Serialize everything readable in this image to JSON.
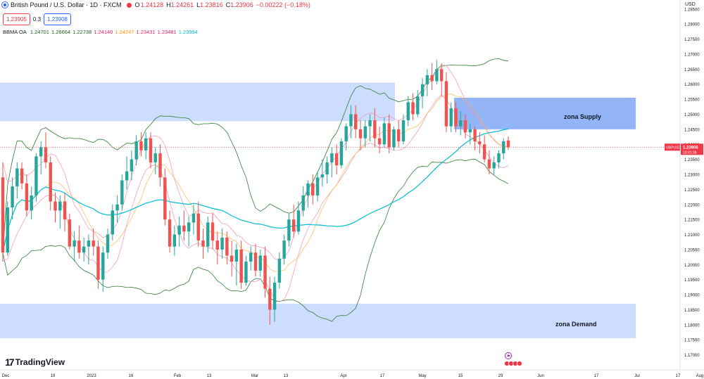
{
  "header": {
    "symbol": "British Pound / U.S. Dollar · 1D · FXCM",
    "o_label": "O",
    "o_value": "1.24128",
    "h_label": "H",
    "h_value": "1.24261",
    "l_label": "L",
    "l_value": "1.23816",
    "c_label": "C",
    "c_value": "1.23906",
    "change": "−0.00222 (−0.18%)"
  },
  "trade": {
    "sell": "1.23905",
    "spread": "0.3",
    "buy": "1.23908"
  },
  "indicator": {
    "name": "BBMA OA",
    "values": [
      "1.24701",
      "1.26664",
      "1.22738",
      "1.24140",
      "1.24247",
      "1.23431",
      "1.23481",
      "1.23994"
    ],
    "colors": [
      "#1b5e20",
      "#1b5e20",
      "#1b5e20",
      "#e91e63",
      "#ff9800",
      "#e91e63",
      "#e91e63",
      "#00bcd4"
    ]
  },
  "zones": {
    "supply": "zona Supply",
    "demand": "zona Demand"
  },
  "branding": "TradingView",
  "colors": {
    "up": "#26a69a",
    "down": "#ef5350",
    "zone": "#90b4ff",
    "mid": "#00bcd4",
    "band": "#2e7d32"
  },
  "chart_data": {
    "type": "candlestick",
    "currency": "USD",
    "y_axis": {
      "ticks": [
        "1.28500",
        "1.28000",
        "1.27500",
        "1.27000",
        "1.26500",
        "1.26000",
        "1.25500",
        "1.25000",
        "1.24500",
        "1.24000",
        "1.23500",
        "1.23000",
        "1.22500",
        "1.22000",
        "1.21500",
        "1.21000",
        "1.20500",
        "1.20000",
        "1.19500",
        "1.19000",
        "1.18500",
        "1.18000",
        "1.17500",
        "1.17000"
      ],
      "range": [
        1.165,
        1.288
      ]
    },
    "x_axis": {
      "ticks": [
        "Dec",
        "19",
        "2023",
        "16",
        "Feb",
        "13",
        "Mar",
        "13",
        "Apr",
        "17",
        "May",
        "15",
        "29",
        "Jun",
        "17",
        "Jul",
        "17",
        "Aug"
      ]
    },
    "last_price": {
      "label": "GBPUSD",
      "value": "1.23906",
      "countdown": "10:41:08"
    },
    "zones": [
      {
        "name": "zona Supply",
        "from": 1.245,
        "to": 1.2555
      },
      {
        "name": "zona Demand",
        "from": 1.1755,
        "to": 1.187
      }
    ],
    "ohlc": [
      [
        1.229,
        1.234,
        1.201,
        1.204
      ],
      [
        1.204,
        1.221,
        1.203,
        1.219
      ],
      [
        1.219,
        1.229,
        1.215,
        1.226
      ],
      [
        1.226,
        1.234,
        1.222,
        1.232
      ],
      [
        1.232,
        1.234,
        1.225,
        1.227
      ],
      [
        1.227,
        1.23,
        1.216,
        1.218
      ],
      [
        1.218,
        1.226,
        1.215,
        1.223
      ],
      [
        1.223,
        1.237,
        1.221,
        1.236
      ],
      [
        1.236,
        1.241,
        1.23,
        1.239
      ],
      [
        1.239,
        1.244,
        1.232,
        1.234
      ],
      [
        1.234,
        1.236,
        1.218,
        1.221
      ],
      [
        1.221,
        1.224,
        1.214,
        1.218
      ],
      [
        1.218,
        1.223,
        1.212,
        1.221
      ],
      [
        1.221,
        1.224,
        1.211,
        1.215
      ],
      [
        1.215,
        1.217,
        1.205,
        1.206
      ],
      [
        1.206,
        1.211,
        1.201,
        1.208
      ],
      [
        1.208,
        1.213,
        1.202,
        1.204
      ],
      [
        1.204,
        1.209,
        1.201,
        1.206
      ],
      [
        1.206,
        1.21,
        1.2,
        1.208
      ],
      [
        1.208,
        1.212,
        1.203,
        1.206
      ],
      [
        1.206,
        1.208,
        1.192,
        1.195
      ],
      [
        1.195,
        1.206,
        1.191,
        1.204
      ],
      [
        1.204,
        1.212,
        1.202,
        1.21
      ],
      [
        1.21,
        1.22,
        1.208,
        1.218
      ],
      [
        1.218,
        1.223,
        1.214,
        1.22
      ],
      [
        1.22,
        1.23,
        1.218,
        1.228
      ],
      [
        1.228,
        1.236,
        1.225,
        1.231
      ],
      [
        1.231,
        1.238,
        1.228,
        1.235
      ],
      [
        1.235,
        1.243,
        1.233,
        1.241
      ],
      [
        1.241,
        1.244,
        1.236,
        1.238
      ],
      [
        1.238,
        1.244,
        1.235,
        1.242
      ],
      [
        1.242,
        1.244,
        1.232,
        1.234
      ],
      [
        1.234,
        1.239,
        1.23,
        1.237
      ],
      [
        1.237,
        1.24,
        1.226,
        1.229
      ],
      [
        1.229,
        1.232,
        1.213,
        1.215
      ],
      [
        1.215,
        1.218,
        1.204,
        1.206
      ],
      [
        1.206,
        1.213,
        1.203,
        1.21
      ],
      [
        1.21,
        1.216,
        1.206,
        1.213
      ],
      [
        1.213,
        1.218,
        1.208,
        1.211
      ],
      [
        1.211,
        1.216,
        1.206,
        1.214
      ],
      [
        1.214,
        1.22,
        1.21,
        1.217
      ],
      [
        1.217,
        1.221,
        1.206,
        1.208
      ],
      [
        1.208,
        1.212,
        1.202,
        1.206
      ],
      [
        1.206,
        1.216,
        1.204,
        1.214
      ],
      [
        1.214,
        1.217,
        1.205,
        1.208
      ],
      [
        1.208,
        1.211,
        1.2,
        1.205
      ],
      [
        1.205,
        1.212,
        1.202,
        1.209
      ],
      [
        1.209,
        1.211,
        1.2,
        1.203
      ],
      [
        1.203,
        1.208,
        1.196,
        1.201
      ],
      [
        1.201,
        1.207,
        1.193,
        1.205
      ],
      [
        1.205,
        1.208,
        1.192,
        1.194
      ],
      [
        1.194,
        1.203,
        1.193,
        1.201
      ],
      [
        1.201,
        1.206,
        1.198,
        1.204
      ],
      [
        1.204,
        1.207,
        1.196,
        1.198
      ],
      [
        1.198,
        1.205,
        1.196,
        1.203
      ],
      [
        1.203,
        1.206,
        1.189,
        1.192
      ],
      [
        1.192,
        1.196,
        1.18,
        1.185
      ],
      [
        1.185,
        1.196,
        1.181,
        1.194
      ],
      [
        1.194,
        1.204,
        1.192,
        1.202
      ],
      [
        1.202,
        1.21,
        1.2,
        1.208
      ],
      [
        1.208,
        1.217,
        1.206,
        1.215
      ],
      [
        1.215,
        1.22,
        1.209,
        1.211
      ],
      [
        1.211,
        1.221,
        1.21,
        1.218
      ],
      [
        1.218,
        1.226,
        1.216,
        1.223
      ],
      [
        1.223,
        1.228,
        1.219,
        1.227
      ],
      [
        1.227,
        1.23,
        1.22,
        1.223
      ],
      [
        1.223,
        1.231,
        1.221,
        1.229
      ],
      [
        1.229,
        1.235,
        1.226,
        1.23
      ],
      [
        1.23,
        1.236,
        1.227,
        1.234
      ],
      [
        1.234,
        1.239,
        1.229,
        1.237
      ],
      [
        1.237,
        1.24,
        1.23,
        1.233
      ],
      [
        1.233,
        1.242,
        1.232,
        1.241
      ],
      [
        1.241,
        1.247,
        1.238,
        1.246
      ],
      [
        1.246,
        1.253,
        1.242,
        1.25
      ],
      [
        1.25,
        1.253,
        1.242,
        1.245
      ],
      [
        1.245,
        1.248,
        1.238,
        1.242
      ],
      [
        1.242,
        1.248,
        1.239,
        1.246
      ],
      [
        1.246,
        1.25,
        1.241,
        1.248
      ],
      [
        1.248,
        1.252,
        1.239,
        1.242
      ],
      [
        1.242,
        1.246,
        1.237,
        1.24
      ],
      [
        1.24,
        1.249,
        1.239,
        1.247
      ],
      [
        1.247,
        1.25,
        1.237,
        1.239
      ],
      [
        1.239,
        1.246,
        1.238,
        1.245
      ],
      [
        1.245,
        1.248,
        1.239,
        1.241
      ],
      [
        1.241,
        1.25,
        1.24,
        1.248
      ],
      [
        1.248,
        1.256,
        1.246,
        1.254
      ],
      [
        1.254,
        1.257,
        1.248,
        1.25
      ],
      [
        1.25,
        1.258,
        1.249,
        1.256
      ],
      [
        1.256,
        1.262,
        1.252,
        1.26
      ],
      [
        1.26,
        1.265,
        1.256,
        1.263
      ],
      [
        1.263,
        1.267,
        1.258,
        1.261
      ],
      [
        1.261,
        1.268,
        1.26,
        1.265
      ],
      [
        1.265,
        1.267,
        1.256,
        1.261
      ],
      [
        1.261,
        1.264,
        1.244,
        1.246
      ],
      [
        1.246,
        1.254,
        1.244,
        1.252
      ],
      [
        1.252,
        1.254,
        1.244,
        1.246
      ],
      [
        1.246,
        1.251,
        1.243,
        1.248
      ],
      [
        1.248,
        1.25,
        1.242,
        1.244
      ],
      [
        1.244,
        1.247,
        1.24,
        1.245
      ],
      [
        1.245,
        1.246,
        1.238,
        1.241
      ],
      [
        1.241,
        1.244,
        1.237,
        1.24
      ],
      [
        1.24,
        1.243,
        1.234,
        1.235
      ],
      [
        1.235,
        1.238,
        1.23,
        1.232
      ],
      [
        1.232,
        1.236,
        1.23,
        1.234
      ],
      [
        1.234,
        1.238,
        1.232,
        1.237
      ],
      [
        1.237,
        1.242,
        1.235,
        1.241
      ],
      [
        1.2413,
        1.2426,
        1.2382,
        1.2391
      ]
    ]
  }
}
